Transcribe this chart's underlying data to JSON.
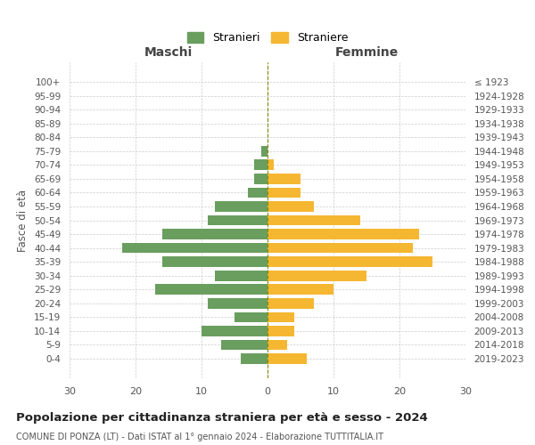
{
  "age_groups": [
    "100+",
    "95-99",
    "90-94",
    "85-89",
    "80-84",
    "75-79",
    "70-74",
    "65-69",
    "60-64",
    "55-59",
    "50-54",
    "45-49",
    "40-44",
    "35-39",
    "30-34",
    "25-29",
    "20-24",
    "15-19",
    "10-14",
    "5-9",
    "0-4"
  ],
  "birth_years": [
    "≤ 1923",
    "1924-1928",
    "1929-1933",
    "1934-1938",
    "1939-1943",
    "1944-1948",
    "1949-1953",
    "1954-1958",
    "1959-1963",
    "1964-1968",
    "1969-1973",
    "1974-1978",
    "1979-1983",
    "1984-1988",
    "1989-1993",
    "1994-1998",
    "1999-2003",
    "2004-2008",
    "2009-2013",
    "2014-2018",
    "2019-2023"
  ],
  "maschi": [
    0,
    0,
    0,
    0,
    0,
    1,
    2,
    2,
    3,
    8,
    9,
    16,
    22,
    16,
    8,
    17,
    9,
    5,
    10,
    7,
    4
  ],
  "femmine": [
    0,
    0,
    0,
    0,
    0,
    0,
    1,
    5,
    5,
    7,
    14,
    23,
    22,
    25,
    15,
    10,
    7,
    4,
    4,
    3,
    6
  ],
  "color_maschi": "#6a9e5f",
  "color_femmine": "#f5b731",
  "title": "Popolazione per cittadinanza straniera per età e sesso - 2024",
  "subtitle": "COMUNE DI PONZA (LT) - Dati ISTAT al 1° gennaio 2024 - Elaborazione TUTTITALIA.IT",
  "xlabel_left": "Maschi",
  "xlabel_right": "Femmine",
  "ylabel_left": "Fasce di età",
  "legend_maschi": "Stranieri",
  "legend_femmine": "Straniere",
  "xlim": 30,
  "background_color": "#ffffff",
  "grid_color": "#cccccc"
}
